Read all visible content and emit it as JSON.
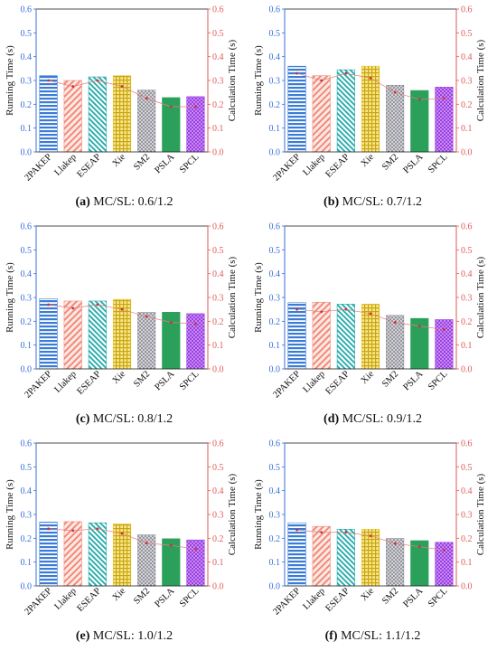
{
  "colors": {
    "left_axis": "#3a6fd8",
    "right_axis": "#e05a5a",
    "calc_line": "#e08080",
    "calc_marker": "#d03030",
    "bars": [
      "#3a7bd5",
      "#f08a7a",
      "#1fa8a8",
      "#e8c020",
      "#a0a0a8",
      "#2aa05a",
      "#9a40e0"
    ]
  },
  "chart_data": [
    {
      "type": "bar",
      "caption_label": "(a)",
      "caption_text": "MC/SL: 0.6/1.2",
      "categories": [
        "2PAKEP",
        "Llakep",
        "ESEAP",
        "Xie",
        "SM2",
        "PSLA",
        "SPCL"
      ],
      "ylabel": "Running Time (s)",
      "y2label": "Calculation Time (s)",
      "ylim": [
        0,
        0.6
      ],
      "y2lim": [
        0,
        0.6
      ],
      "yticks": [
        "0.0",
        "0.1",
        "0.2",
        "0.3",
        "0.4",
        "0.5",
        "0.6"
      ],
      "series": [
        {
          "values": [
            0.32,
            0.3,
            0.315,
            0.32,
            0.26,
            0.228,
            0.232
          ]
        },
        {
          "values": [
            0.3,
            0.275,
            0.3,
            0.275,
            0.225,
            0.19,
            0.19
          ]
        }
      ]
    },
    {
      "type": "bar",
      "caption_label": "(b)",
      "caption_text": "MC/SL: 0.7/1.2",
      "categories": [
        "2PAKEP",
        "Llakep",
        "ESEAP",
        "Xie",
        "SM2",
        "PSLA",
        "SPCL"
      ],
      "ylabel": "Running Time (s)",
      "y2label": "Calculation Time (s)",
      "ylim": [
        0,
        0.6
      ],
      "y2lim": [
        0,
        0.6
      ],
      "yticks": [
        "0.0",
        "0.1",
        "0.2",
        "0.3",
        "0.4",
        "0.5",
        "0.6"
      ],
      "series": [
        {
          "values": [
            0.36,
            0.32,
            0.345,
            0.36,
            0.28,
            0.258,
            0.272
          ]
        },
        {
          "values": [
            0.33,
            0.3,
            0.33,
            0.31,
            0.25,
            0.22,
            0.225
          ]
        }
      ]
    },
    {
      "type": "bar",
      "caption_label": "(c)",
      "caption_text": "MC/SL: 0.8/1.2",
      "categories": [
        "2PAKEP",
        "Llakep",
        "ESEAP",
        "Xie",
        "SM2",
        "PSLA",
        "SPCL"
      ],
      "ylabel": "Running Time (s)",
      "y2label": "Calculation Time (s)",
      "ylim": [
        0,
        0.6
      ],
      "y2lim": [
        0,
        0.6
      ],
      "yticks": [
        "0.0",
        "0.1",
        "0.2",
        "0.3",
        "0.4",
        "0.5",
        "0.6"
      ],
      "series": [
        {
          "values": [
            0.295,
            0.285,
            0.285,
            0.292,
            0.238,
            0.238,
            0.232
          ]
        },
        {
          "values": [
            0.27,
            0.255,
            0.27,
            0.25,
            0.22,
            0.195,
            0.19
          ]
        }
      ]
    },
    {
      "type": "bar",
      "caption_label": "(d)",
      "caption_text": "MC/SL: 0.9/1.2",
      "categories": [
        "2PAKEP",
        "Llakep",
        "ESEAP",
        "Xie",
        "SM2",
        "PSLA",
        "SPCL"
      ],
      "ylabel": "Running Time (s)",
      "y2label": "Calculation Time (s)",
      "ylim": [
        0,
        0.6
      ],
      "y2lim": [
        0,
        0.6
      ],
      "yticks": [
        "0.0",
        "0.1",
        "0.2",
        "0.3",
        "0.4",
        "0.5",
        "0.6"
      ],
      "series": [
        {
          "values": [
            0.278,
            0.28,
            0.272,
            0.272,
            0.225,
            0.212,
            0.207
          ]
        },
        {
          "values": [
            0.25,
            0.24,
            0.25,
            0.232,
            0.195,
            0.18,
            0.165
          ]
        }
      ]
    },
    {
      "type": "bar",
      "caption_label": "(e)",
      "caption_text": "MC/SL: 1.0/1.2",
      "categories": [
        "2PAKEP",
        "Llakep",
        "ESEAP",
        "Xie",
        "SM2",
        "PSLA",
        "SPCL"
      ],
      "ylabel": "Running Time (s)",
      "y2label": "Calculation Time (s)",
      "ylim": [
        0,
        0.6
      ],
      "y2lim": [
        0,
        0.6
      ],
      "yticks": [
        "0.0",
        "0.1",
        "0.2",
        "0.3",
        "0.4",
        "0.5",
        "0.6"
      ],
      "series": [
        {
          "values": [
            0.268,
            0.27,
            0.265,
            0.26,
            0.215,
            0.198,
            0.193
          ]
        },
        {
          "values": [
            0.24,
            0.232,
            0.24,
            0.22,
            0.18,
            0.17,
            0.155
          ]
        }
      ]
    },
    {
      "type": "bar",
      "caption_label": "(f)",
      "caption_text": "MC/SL: 1.1/1.2",
      "categories": [
        "2PAKEP",
        "Llakep",
        "ESEAP",
        "Xie",
        "SM2",
        "PSLA",
        "SPCL"
      ],
      "ylabel": "Running Time (s)",
      "y2label": "Calculation Time (s)",
      "ylim": [
        0,
        0.6
      ],
      "y2lim": [
        0,
        0.6
      ],
      "yticks": [
        "0.0",
        "0.1",
        "0.2",
        "0.3",
        "0.4",
        "0.5",
        "0.6"
      ],
      "series": [
        {
          "values": [
            0.265,
            0.25,
            0.238,
            0.238,
            0.2,
            0.19,
            0.183
          ]
        },
        {
          "values": [
            0.235,
            0.225,
            0.225,
            0.21,
            0.178,
            0.165,
            0.15
          ]
        }
      ]
    }
  ]
}
